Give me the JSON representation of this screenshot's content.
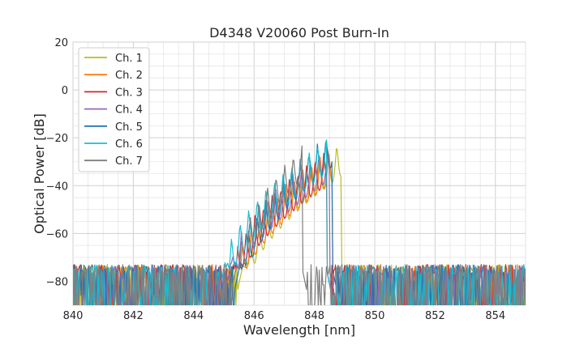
{
  "chart_data": {
    "type": "line",
    "title": "D4348 V20060 Post Burn-In",
    "xlabel": "Wavelength [nm]",
    "ylabel": "Optical Power [dB]",
    "xlim": [
      840,
      855
    ],
    "ylim": [
      -90,
      20
    ],
    "x_ticks": [
      "840",
      "842",
      "844",
      "846",
      "848",
      "850",
      "852",
      "854"
    ],
    "y_ticks": [
      "20",
      "0",
      "−20",
      "−40",
      "−60",
      "−80"
    ],
    "grid": true,
    "legend_position": "upper left",
    "noise_floor_db": -75,
    "series": [
      {
        "name": "Ch. 1",
        "color": "#bcbd22",
        "band_nm": [
          845.6,
          848.9
        ],
        "peak_db": -21
      },
      {
        "name": "Ch. 2",
        "color": "#ff7f0e",
        "band_nm": [
          845.4,
          848.6
        ],
        "peak_db": -24
      },
      {
        "name": "Ch. 3",
        "color": "#d62728",
        "band_nm": [
          845.3,
          848.4
        ],
        "peak_db": -25
      },
      {
        "name": "Ch. 4",
        "color": "#9467bd",
        "band_nm": [
          845.2,
          848.5
        ],
        "peak_db": -23
      },
      {
        "name": "Ch. 5",
        "color": "#1f77b4",
        "band_nm": [
          845.5,
          848.6
        ],
        "peak_db": -17
      },
      {
        "name": "Ch. 6",
        "color": "#17becf",
        "band_nm": [
          845.0,
          848.4
        ],
        "peak_db": -20
      },
      {
        "name": "Ch. 7",
        "color": "#7f7f7f",
        "band_nm": [
          845.4,
          847.6
        ],
        "peak_db": -23
      }
    ]
  }
}
